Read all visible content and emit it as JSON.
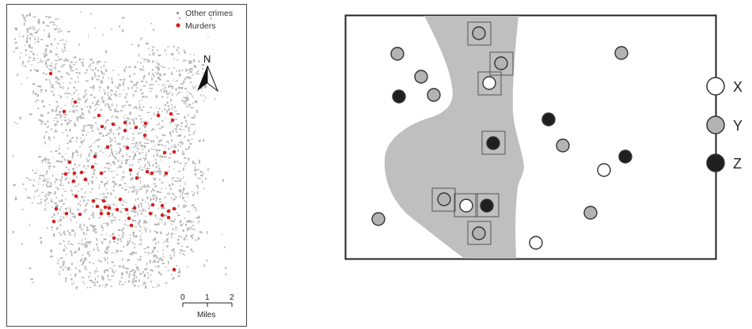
{
  "map_panel": {
    "legend": {
      "other_crimes_label": "Other crimes",
      "murders_label": "Murders",
      "other_crimes_color": "#b5b5b5",
      "murders_color": "#d62020"
    },
    "north_arrow_label": "N",
    "scale_bar": {
      "ticks": [
        "0",
        "1",
        "2"
      ],
      "unit_label": "Miles"
    }
  },
  "diagram_panel": {
    "legend": [
      {
        "key": "X",
        "label": "X",
        "fill": "#ffffff",
        "icon": "white-circle"
      },
      {
        "key": "Y",
        "label": "Y",
        "fill": "#b3b3b3",
        "icon": "gray-circle"
      },
      {
        "key": "Z",
        "label": "Z",
        "fill": "#1f1f1f",
        "icon": "black-circle"
      }
    ],
    "region_fill": "#bfbfbf"
  }
}
